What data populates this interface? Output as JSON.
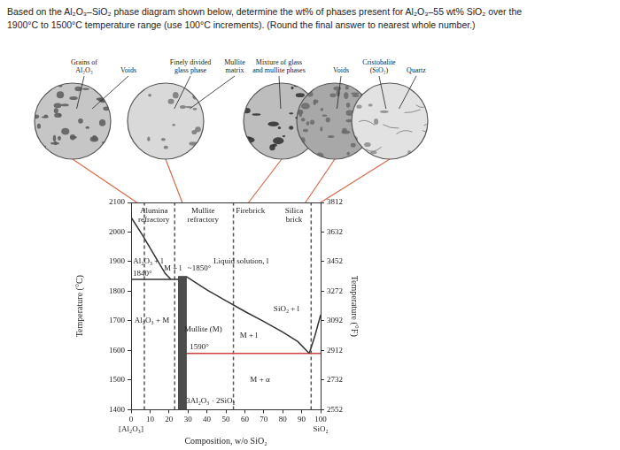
{
  "question": [
    "Based on the Al₂O₃–SiO₂ phase diagram shown below, determine the wt% of phases present for Al₂O₃–55 wt% SiO₂ over the",
    "1900°C to 1500°C temperature range (use 100°C increments). (Round the final answer to nearest whole number.)"
  ],
  "micrographs": [
    {
      "labels": [
        [
          "Grains of",
          "Al₂O₃"
        ],
        [
          "Voids"
        ]
      ],
      "composition": 3
    },
    {
      "labels": [
        [
          "Finely divided",
          "glass phase"
        ],
        [
          "Mullite",
          "matrix"
        ]
      ],
      "composition": 27
    },
    {
      "labels": [
        [
          "Mixture of glass",
          "and mullite phases"
        ]
      ],
      "composition": 62
    },
    {
      "labels": [
        [
          "Voids"
        ]
      ],
      "composition": 92
    },
    {
      "labels": [
        [
          "Cristobalite",
          "(SiO₂)"
        ],
        [
          "Quartz"
        ]
      ],
      "composition": 100
    }
  ],
  "chart_data": {
    "type": "line",
    "xlabel": "Composition, w/o SiO₂",
    "ylabel": "Temperature (°C)",
    "y2label": "Temperature (°F)",
    "xlim": [
      0,
      100
    ],
    "xticks": [
      0,
      10,
      20,
      30,
      40,
      50,
      60,
      70,
      80,
      90,
      100
    ],
    "x_sublabels": [
      {
        "x": 0,
        "text": "[Al₂O₃]"
      },
      {
        "x": 100,
        "text": "SiO₂"
      }
    ],
    "ylim": [
      1400,
      2100
    ],
    "yticks": [
      1400,
      1500,
      1600,
      1700,
      1800,
      1900,
      2000,
      2100
    ],
    "y2lim": [
      2552,
      3812
    ],
    "y2ticks": [
      2552,
      2732,
      2912,
      3092,
      3272,
      3452,
      3632,
      3812
    ],
    "grid": false,
    "series": [
      {
        "color": "#333333",
        "line_style": "solid",
        "x": [
          0,
          6,
          12,
          18,
          21
        ],
        "values": [
          2050,
          1990,
          1925,
          1860,
          1840
        ]
      },
      {
        "color": "#333333",
        "line_style": "solid",
        "x": [
          0,
          25
        ],
        "values": [
          1840,
          1840
        ]
      },
      {
        "type": "area",
        "color": "#4d4d4d",
        "line_style": "solid",
        "x": [
          25,
          25,
          29,
          29,
          25
        ],
        "values": [
          1400,
          1850,
          1850,
          1400,
          1400
        ]
      },
      {
        "color": "#333333",
        "line_style": "solid",
        "x": [
          29,
          40,
          50,
          60,
          70,
          80,
          88,
          94
        ],
        "values": [
          1850,
          1805,
          1768,
          1732,
          1698,
          1662,
          1630,
          1590
        ]
      },
      {
        "color": "#333333",
        "line_style": "solid",
        "x": [
          94,
          97,
          100
        ],
        "values": [
          1590,
          1650,
          1720
        ]
      },
      {
        "color": "#d04040",
        "line_style": "solid",
        "x": [
          29,
          100
        ],
        "values": [
          1590,
          1590
        ]
      },
      {
        "color": "#555555",
        "line_style": "dashed",
        "x": [
          7,
          7
        ],
        "values": [
          1400,
          2100
        ]
      },
      {
        "color": "#555555",
        "line_style": "dashed",
        "x": [
          23,
          23
        ],
        "values": [
          1400,
          2100
        ]
      },
      {
        "color": "#555555",
        "line_style": "dashed",
        "x": [
          54,
          54
        ],
        "values": [
          1400,
          2100
        ]
      },
      {
        "color": "#555555",
        "line_style": "dashed",
        "x": [
          95,
          95
        ],
        "values": [
          1400,
          2100
        ]
      }
    ],
    "annotations": [
      {
        "text": [
          "Alumina",
          "refractory"
        ],
        "x": 12,
        "y": 2070
      },
      {
        "text": [
          "Mullite",
          "refractory"
        ],
        "x": 38,
        "y": 2070
      },
      {
        "text": [
          "Firebrick"
        ],
        "x": 63,
        "y": 2070
      },
      {
        "text": [
          "Silica",
          "brick"
        ],
        "x": 86,
        "y": 2070
      },
      {
        "text": [
          "Al₂O₃ + l"
        ],
        "x": 9,
        "y": 1900
      },
      {
        "text": [
          "1840°"
        ],
        "x": 6,
        "y": 1858
      },
      {
        "text": [
          "M + l"
        ],
        "x": 22,
        "y": 1878
      },
      {
        "text": [
          "~1850°"
        ],
        "x": 36,
        "y": 1878
      },
      {
        "text": [
          "Liquid solution, l"
        ],
        "x": 58,
        "y": 1900
      },
      {
        "text": [
          "Al₂O₃ + M"
        ],
        "x": 11,
        "y": 1700
      },
      {
        "text": [
          "Mullite (M)"
        ],
        "x": 38,
        "y": 1670
      },
      {
        "text": [
          "1590°"
        ],
        "x": 36,
        "y": 1612
      },
      {
        "text": [
          "M + l"
        ],
        "x": 62,
        "y": 1650
      },
      {
        "text": [
          "SiO₂ + l"
        ],
        "x": 82,
        "y": 1740
      },
      {
        "text": [
          "M + α"
        ],
        "x": 68,
        "y": 1500
      },
      {
        "text": [
          "3Al₂O₃ · 2SiO₂"
        ],
        "x": 42,
        "y": 1430
      }
    ]
  }
}
